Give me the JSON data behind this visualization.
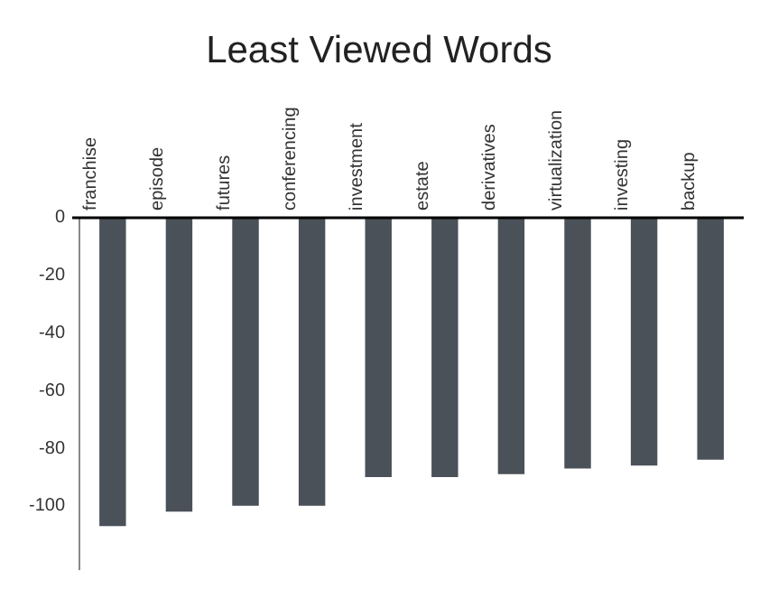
{
  "chart_data": {
    "type": "bar",
    "title": "Least Viewed Words",
    "categories": [
      "franchise",
      "episode",
      "futures",
      "conferencing",
      "investment",
      "estate",
      "derivatives",
      "virtualization",
      "investing",
      "backup"
    ],
    "values": [
      -107,
      -102,
      -100,
      -100,
      -90,
      -90,
      -89,
      -87,
      -86,
      -84
    ],
    "color": "#4a5159",
    "ylim": [
      -122,
      0
    ],
    "yticks": [
      0,
      -20,
      -40,
      -60,
      -80,
      -100
    ],
    "grid": false,
    "legend": false
  }
}
